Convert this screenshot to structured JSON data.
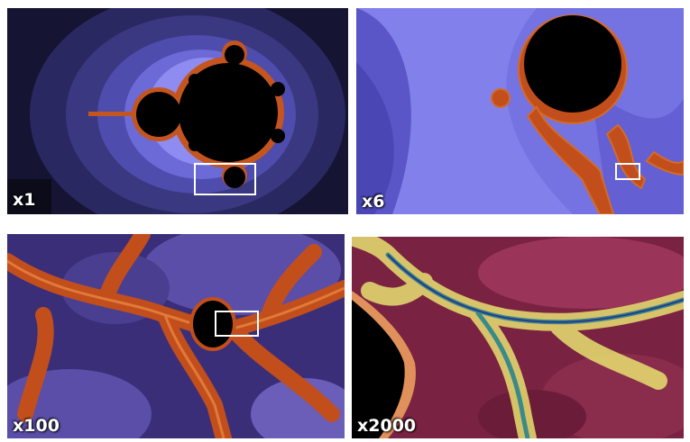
{
  "panels": [
    {
      "id": "p1",
      "label": "x1"
    },
    {
      "id": "p2",
      "label": "x6"
    },
    {
      "id": "p3",
      "label": "x100"
    },
    {
      "id": "p4",
      "label": "x2000"
    }
  ],
  "colors": {
    "p1_bg": "#1a1840",
    "p1_halo": "#6a6ad8",
    "p1_set": "#000000",
    "p2_bg": "#7a78e0",
    "p2_bands": "#5a55c8",
    "p3_bg": "#4a3a8c",
    "p3_filament": "#c04a1a",
    "p4_bg": "#8a2848",
    "p4_filament": "#e8e070"
  }
}
